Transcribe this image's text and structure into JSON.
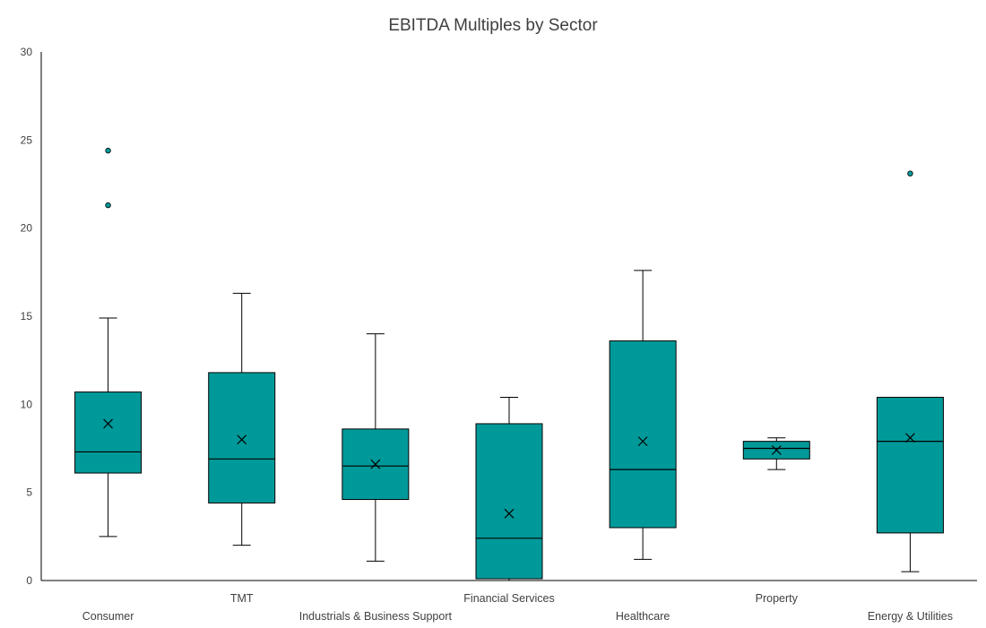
{
  "chart_data": {
    "type": "boxplot",
    "title": "EBITDA Multiples by Sector",
    "ylim": [
      0,
      30
    ],
    "yticks": [
      "0",
      "5",
      "10",
      "15",
      "20",
      "25",
      "30"
    ],
    "grid": false,
    "colors": {
      "box_fill": "#009999",
      "box_stroke": "#000000",
      "outlier_fill": "#009999",
      "axis": "#000000"
    },
    "categories": [
      "Consumer",
      "TMT",
      "Industrials & Business Support",
      "Financial Services",
      "Healthcare",
      "Property",
      "Energy & Utilities"
    ],
    "label_rows": [
      "low",
      "high",
      "low",
      "high",
      "low",
      "high",
      "low"
    ],
    "boxes": [
      {
        "category": "Consumer",
        "whisker_low": 2.5,
        "q1": 6.1,
        "median": 7.3,
        "q3": 10.7,
        "whisker_high": 14.9,
        "mean": 8.9,
        "outliers": [
          21.3,
          24.4
        ]
      },
      {
        "category": "TMT",
        "whisker_low": 2.0,
        "q1": 4.4,
        "median": 6.9,
        "q3": 11.8,
        "whisker_high": 16.3,
        "mean": 8.0,
        "outliers": []
      },
      {
        "category": "Industrials & Business Support",
        "whisker_low": 1.1,
        "q1": 4.6,
        "median": 6.5,
        "q3": 8.6,
        "whisker_high": 14.0,
        "mean": 6.6,
        "outliers": []
      },
      {
        "category": "Financial Services",
        "whisker_low": 0.0,
        "q1": 0.1,
        "median": 2.4,
        "q3": 8.9,
        "whisker_high": 10.4,
        "mean": 3.8,
        "outliers": []
      },
      {
        "category": "Healthcare",
        "whisker_low": 1.2,
        "q1": 3.0,
        "median": 6.3,
        "q3": 13.6,
        "whisker_high": 17.6,
        "mean": 7.9,
        "outliers": []
      },
      {
        "category": "Property",
        "whisker_low": 6.3,
        "q1": 6.9,
        "median": 7.5,
        "q3": 7.9,
        "whisker_high": 8.1,
        "mean": 7.4,
        "outliers": []
      },
      {
        "category": "Energy & Utilities",
        "whisker_low": 0.5,
        "q1": 2.7,
        "median": 7.9,
        "q3": 10.4,
        "whisker_high": 10.4,
        "mean": 8.1,
        "outliers": [
          23.1
        ]
      }
    ]
  }
}
